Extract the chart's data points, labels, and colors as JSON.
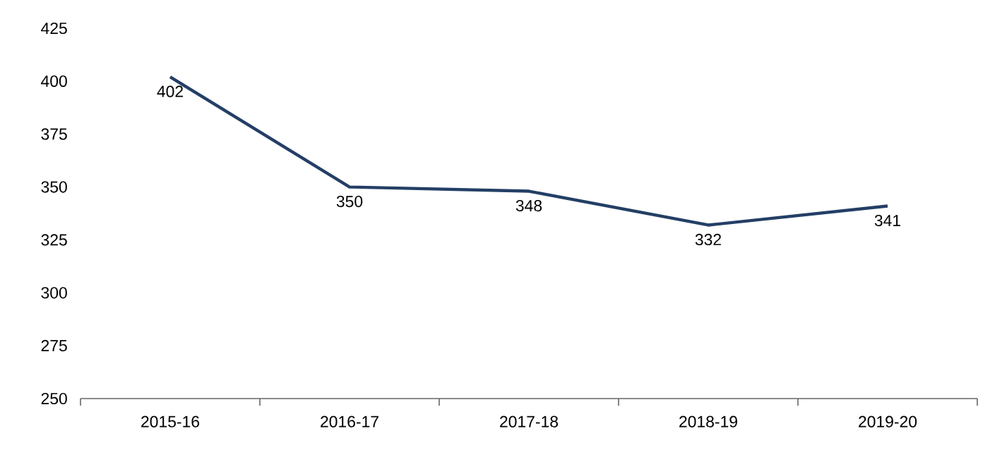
{
  "chart_data": {
    "type": "line",
    "categories": [
      "2015-16",
      "2016-17",
      "2017-18",
      "2018-19",
      "2019-20"
    ],
    "values": [
      402,
      350,
      348,
      332,
      341
    ],
    "color": "#243f66",
    "ylim": [
      250,
      425
    ],
    "yticks": [
      250,
      275,
      300,
      325,
      350,
      375,
      400,
      425
    ],
    "data_labels": true,
    "marker": "none",
    "line_style": "solid"
  }
}
